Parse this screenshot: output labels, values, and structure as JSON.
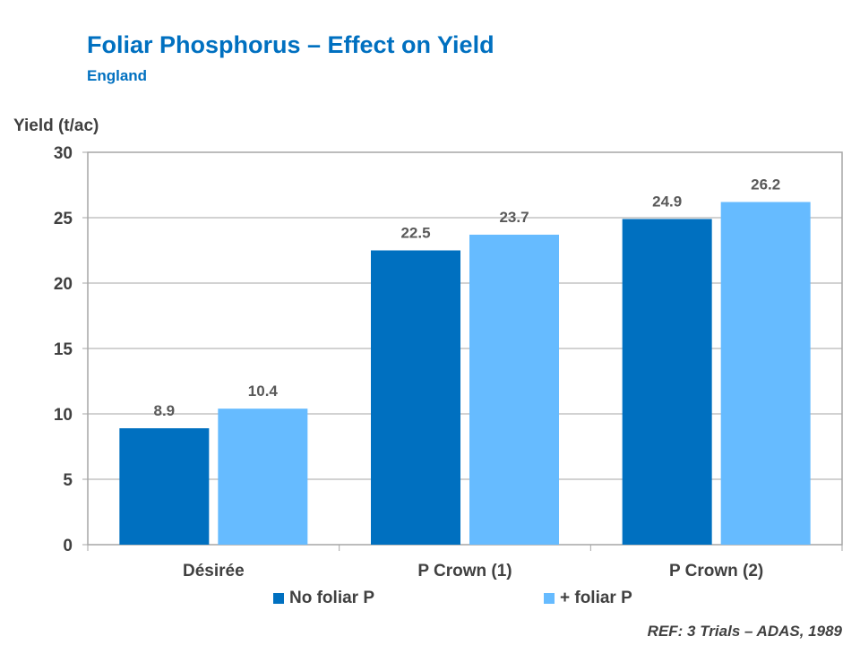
{
  "chart_data": {
    "type": "bar",
    "title": "Foliar Phosphorus  – Effect on Yield",
    "subtitle": "England",
    "ylabel": "Yield (t/ac)",
    "xlabel": "",
    "ylim": [
      0,
      30
    ],
    "yticks": [
      0,
      5,
      10,
      15,
      20,
      25,
      30
    ],
    "categories": [
      "Désirée",
      "P Crown (1)",
      "P Crown (2)"
    ],
    "series": [
      {
        "name": "No foliar P",
        "color": "#0070c0",
        "values": [
          8.9,
          22.5,
          24.9
        ],
        "labels": [
          "8.9",
          "22.5",
          "24.9"
        ]
      },
      {
        "name": "+ foliar P",
        "color": "#66bbff",
        "values": [
          10.4,
          23.7,
          26.2
        ],
        "labels": [
          "10.4",
          "23.7",
          "26.2"
        ]
      }
    ],
    "grid": true,
    "legend_position": "bottom"
  },
  "footer": {
    "reference": "REF: 3 Trials – ADAS, 1989"
  }
}
